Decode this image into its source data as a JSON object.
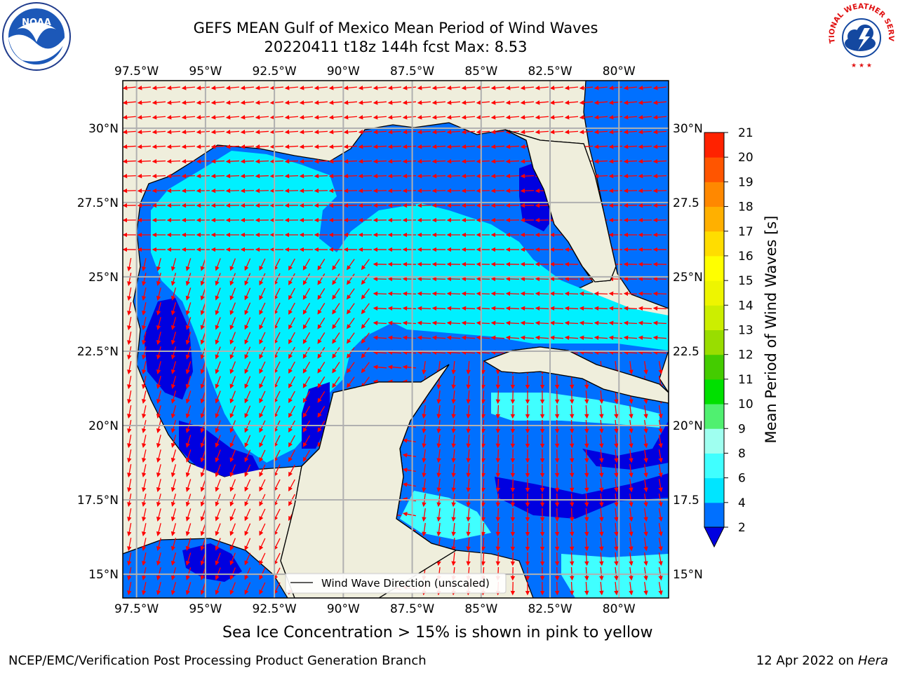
{
  "title": {
    "line1": "GEFS MEAN Gulf of Mexico Mean Period of Wind Waves",
    "line2": "20220411 t18z 144h fcst   Max: 8.53"
  },
  "map": {
    "lon_range": [
      -98.0,
      -78.2
    ],
    "lat_range": [
      14.2,
      31.6
    ],
    "lon_ticks": [
      "97.5°W",
      "95°W",
      "92.5°W",
      "90°W",
      "87.5°W",
      "85°W",
      "82.5°W",
      "80°W"
    ],
    "lat_ticks_left": [
      "30°N",
      "27.5°N",
      "25°N",
      "22.5°N",
      "20°N",
      "17.5°N",
      "15°N"
    ],
    "lat_ticks_right": [
      "30°N",
      "27.5",
      "25°N",
      "22.5",
      "20°N",
      "17.5",
      "15°N"
    ],
    "land_color": "#efeedc",
    "arrow_color": "#ff0000",
    "grid": true
  },
  "legend": {
    "label": "Wind Wave Direction (unscaled)"
  },
  "colorbar": {
    "title": "Mean Period of Wind Waves [s]",
    "levels": [
      "2",
      "4",
      "6",
      "8",
      "9",
      "10",
      "11",
      "12",
      "13",
      "14",
      "15",
      "16",
      "17",
      "18",
      "19",
      "20",
      "21"
    ],
    "colors": [
      "#0070ff",
      "#00e5ff",
      "#40ffff",
      "#9ffff0",
      "#50f070",
      "#00e000",
      "#44cc00",
      "#99dd00",
      "#ccee00",
      "#eef500",
      "#ffff00",
      "#ffdd00",
      "#ffb000",
      "#ff8800",
      "#ff5500",
      "#ff2200"
    ],
    "under_color": "#0000e0"
  },
  "footer": {
    "note": "Sea Ice Concentration > 15% is shown in pink to yellow",
    "left": "NCEP/EMC/Verification Post Processing Product Generation Branch",
    "right_date": "12 Apr 2022 on",
    "right_host": "Hera"
  },
  "logos": {
    "noaa": "NOAA",
    "nws": "NATIONAL WEATHER SERVICE"
  }
}
